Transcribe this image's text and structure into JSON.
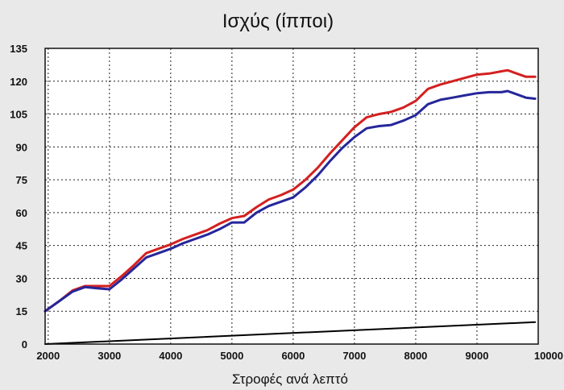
{
  "chart_data": {
    "type": "line",
    "title": "Ισχύς (ίπποι)",
    "xlabel": "Στροφές ανά λεπτό",
    "ylabel": "",
    "xlim": [
      1950,
      10000
    ],
    "ylim": [
      0,
      135
    ],
    "x_ticks": [
      2000,
      3000,
      4000,
      5000,
      6000,
      7000,
      8000,
      9000,
      10000
    ],
    "y_ticks": [
      0,
      15,
      30,
      45,
      60,
      75,
      90,
      105,
      120,
      135
    ],
    "x_tick_labels": [
      "2000",
      "3000",
      "4000",
      "5000",
      "6000",
      "7000",
      "8000",
      "9000",
      "10000"
    ],
    "y_tick_labels": [
      "0",
      "15",
      "30",
      "45",
      "60",
      "75",
      "90",
      "105",
      "120",
      "135"
    ],
    "grid": true,
    "series": [
      {
        "color": "#d42020",
        "x": [
          1950,
          2200,
          2400,
          2600,
          2800,
          3000,
          3200,
          3400,
          3600,
          3800,
          4000,
          4200,
          4400,
          4600,
          4800,
          5000,
          5200,
          5400,
          5600,
          5800,
          6000,
          6200,
          6400,
          6600,
          6800,
          7000,
          7200,
          7400,
          7600,
          7800,
          8000,
          8200,
          8400,
          8600,
          8800,
          9000,
          9200,
          9400,
          9500,
          9600,
          9800,
          9950
        ],
        "values": [
          15,
          20,
          24.5,
          26.5,
          26.5,
          26.5,
          31,
          36,
          41.5,
          43.5,
          45.5,
          48,
          50,
          52,
          55,
          57.5,
          58.5,
          62.5,
          66,
          68,
          70.5,
          75,
          80.5,
          87,
          93,
          99,
          103.5,
          105,
          106,
          108,
          111,
          116.5,
          118.5,
          120,
          121.5,
          123,
          123.5,
          124.5,
          125,
          124,
          122,
          122
        ]
      },
      {
        "color": "#26269a",
        "x": [
          1950,
          2200,
          2400,
          2600,
          2800,
          3000,
          3200,
          3400,
          3600,
          3800,
          4000,
          4200,
          4400,
          4600,
          4800,
          5000,
          5200,
          5400,
          5600,
          5800,
          6000,
          6200,
          6400,
          6600,
          6800,
          7000,
          7200,
          7400,
          7600,
          7800,
          8000,
          8200,
          8400,
          8600,
          8800,
          9000,
          9200,
          9400,
          9500,
          9600,
          9800,
          9950
        ],
        "values": [
          15,
          20,
          24,
          26,
          25.5,
          25,
          29.5,
          34.5,
          39.5,
          41.5,
          43.5,
          46,
          48,
          50,
          52.5,
          55.5,
          55.5,
          60,
          63,
          65,
          67,
          71.5,
          77,
          83.5,
          89.5,
          94.5,
          98.5,
          99.5,
          100,
          102,
          104.5,
          109.5,
          111.5,
          112.5,
          113.5,
          114.5,
          115,
          115,
          115.5,
          114.5,
          112.5,
          112
        ]
      },
      {
        "color": "#000000",
        "x": [
          1950,
          9950
        ],
        "values": [
          0,
          10
        ]
      }
    ]
  }
}
